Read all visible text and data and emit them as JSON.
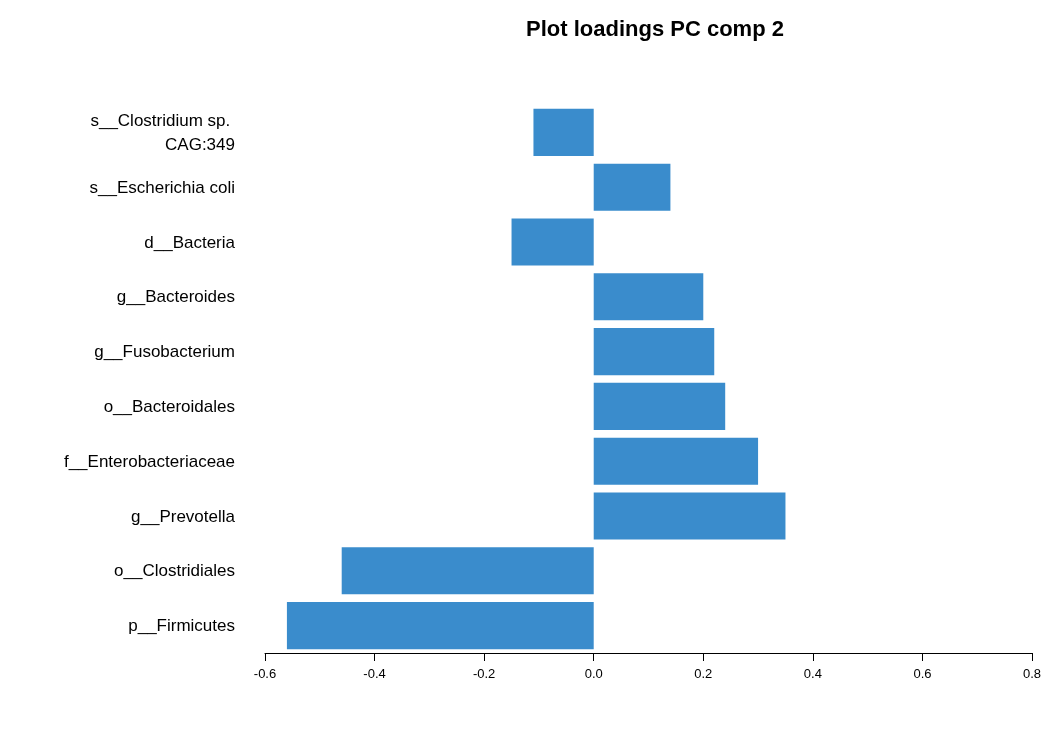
{
  "chart_data": {
    "type": "bar",
    "orientation": "horizontal",
    "title": "Plot loadings PC comp 2",
    "categories": [
      "s__Clostridium sp. CAG:349",
      "s__Escherichia coli",
      "d__Bacteria",
      "g__Bacteroides",
      "g__Fusobacterium",
      "o__Bacteroidales",
      "f__Enterobacteriaceae",
      "g__Prevotella",
      "o__Clostridiales",
      "p__Firmicutes"
    ],
    "values": [
      -0.11,
      0.14,
      -0.15,
      0.2,
      0.22,
      0.24,
      0.3,
      0.35,
      -0.46,
      -0.56
    ],
    "color": "#3a8ccc",
    "xlim": [
      -0.6,
      0.8
    ],
    "xticks": [
      {
        "value": -0.6,
        "label": "-0.6"
      },
      {
        "value": -0.4,
        "label": "-0.4"
      },
      {
        "value": -0.2,
        "label": "-0.2"
      },
      {
        "value": 0,
        "label": "0.0"
      },
      {
        "value": 0.2,
        "label": "0.2"
      },
      {
        "value": 0.4,
        "label": "0.4"
      },
      {
        "value": 0.6,
        "label": "0.6"
      },
      {
        "value": 0.8,
        "label": "0.8"
      }
    ],
    "grid": false
  }
}
